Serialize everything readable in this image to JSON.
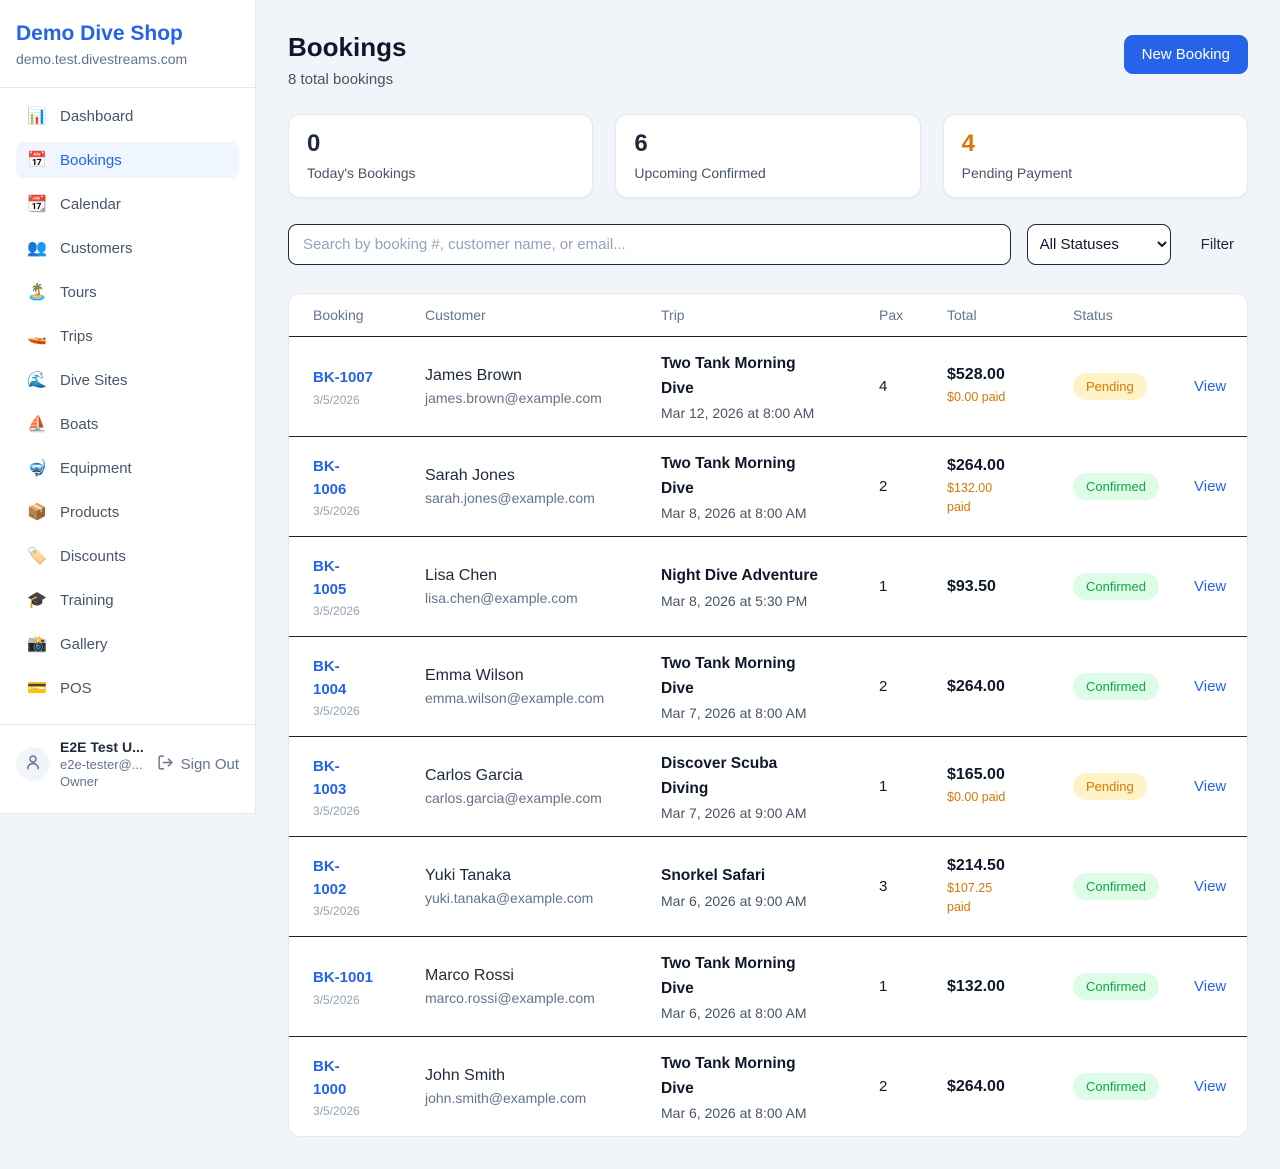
{
  "colors": {
    "brand": "#2563eb",
    "page_bg": "#f1f5f9",
    "pending_bg": "#fef3c7",
    "pending_text": "#d97706",
    "confirmed_bg": "#dcfce7",
    "confirmed_text": "#16a34a",
    "paid_orange": "#d97706"
  },
  "sidebar": {
    "shop_name": "Demo Dive Shop",
    "domain": "demo.test.divestreams.com",
    "items": [
      {
        "icon": "📊",
        "icon_name": "bar-chart-icon",
        "label": "Dashboard",
        "active": false
      },
      {
        "icon": "📅",
        "icon_name": "calendar-date-icon",
        "label": "Bookings",
        "active": true
      },
      {
        "icon": "📆",
        "icon_name": "tear-off-calendar-icon",
        "label": "Calendar",
        "active": false
      },
      {
        "icon": "👥",
        "icon_name": "people-icon",
        "label": "Customers",
        "active": false
      },
      {
        "icon": "🏝️",
        "icon_name": "island-icon",
        "label": "Tours",
        "active": false
      },
      {
        "icon": "🚤",
        "icon_name": "speedboat-icon",
        "label": "Trips",
        "active": false
      },
      {
        "icon": "🌊",
        "icon_name": "wave-icon",
        "label": "Dive Sites",
        "active": false
      },
      {
        "icon": "⛵",
        "icon_name": "sailboat-icon",
        "label": "Boats",
        "active": false
      },
      {
        "icon": "🤿",
        "icon_name": "diving-mask-icon",
        "label": "Equipment",
        "active": false
      },
      {
        "icon": "📦",
        "icon_name": "package-icon",
        "label": "Products",
        "active": false
      },
      {
        "icon": "🏷️",
        "icon_name": "tag-icon",
        "label": "Discounts",
        "active": false
      },
      {
        "icon": "🎓",
        "icon_name": "graduation-cap-icon",
        "label": "Training",
        "active": false
      },
      {
        "icon": "📸",
        "icon_name": "camera-flash-icon",
        "label": "Gallery",
        "active": false
      },
      {
        "icon": "💳",
        "icon_name": "credit-card-icon",
        "label": "POS",
        "active": false
      }
    ],
    "user": {
      "name": "E2E Test U...",
      "email": "e2e-tester@...",
      "role": "Owner",
      "sign_out_label": "Sign Out"
    }
  },
  "header": {
    "title": "Bookings",
    "subtitle": "8 total bookings",
    "new_booking_label": "New Booking"
  },
  "stats": [
    {
      "value": "0",
      "label": "Today's Bookings",
      "accent": "dark"
    },
    {
      "value": "6",
      "label": "Upcoming Confirmed",
      "accent": "dark"
    },
    {
      "value": "4",
      "label": "Pending Payment",
      "accent": "orange"
    }
  ],
  "filters": {
    "search_placeholder": "Search by booking #, customer name, or email...",
    "status_selected": "All Statuses",
    "filter_label": "Filter"
  },
  "table": {
    "columns": [
      "Booking",
      "Customer",
      "Trip",
      "Pax",
      "Total",
      "Status"
    ],
    "view_label": "View",
    "rows": [
      {
        "id": "BK-1007",
        "wrap_id": false,
        "date": "3/5/2026",
        "customer": "James Brown",
        "email": "james.brown@example.com",
        "trip": "Two Tank Morning Dive",
        "trip_date": "Mar 12, 2026 at 8:00 AM",
        "pax": "4",
        "total": "$528.00",
        "paid": "$0.00 paid",
        "wrap_paid": false,
        "status": "Pending"
      },
      {
        "id": "BK-1006",
        "wrap_id": true,
        "date": "3/5/2026",
        "customer": "Sarah Jones",
        "email": "sarah.jones@example.com",
        "trip": "Two Tank Morning Dive",
        "trip_date": "Mar 8, 2026 at 8:00 AM",
        "pax": "2",
        "total": "$264.00",
        "paid": "$132.00 paid",
        "wrap_paid": true,
        "status": "Confirmed"
      },
      {
        "id": "BK-1005",
        "wrap_id": true,
        "date": "3/5/2026",
        "customer": "Lisa Chen",
        "email": "lisa.chen@example.com",
        "trip": "Night Dive Adventure",
        "trip_date": "Mar 8, 2026 at 5:30 PM",
        "pax": "1",
        "total": "$93.50",
        "paid": "",
        "wrap_paid": false,
        "status": "Confirmed"
      },
      {
        "id": "BK-1004",
        "wrap_id": true,
        "date": "3/5/2026",
        "customer": "Emma Wilson",
        "email": "emma.wilson@example.com",
        "trip": "Two Tank Morning Dive",
        "trip_date": "Mar 7, 2026 at 8:00 AM",
        "pax": "2",
        "total": "$264.00",
        "paid": "",
        "wrap_paid": false,
        "status": "Confirmed"
      },
      {
        "id": "BK-1003",
        "wrap_id": true,
        "date": "3/5/2026",
        "customer": "Carlos Garcia",
        "email": "carlos.garcia@example.com",
        "trip": "Discover Scuba Diving",
        "trip_date": "Mar 7, 2026 at 9:00 AM",
        "pax": "1",
        "total": "$165.00",
        "paid": "$0.00 paid",
        "wrap_paid": false,
        "status": "Pending"
      },
      {
        "id": "BK-1002",
        "wrap_id": true,
        "date": "3/5/2026",
        "customer": "Yuki Tanaka",
        "email": "yuki.tanaka@example.com",
        "trip": "Snorkel Safari",
        "trip_date": "Mar 6, 2026 at 9:00 AM",
        "pax": "3",
        "total": "$214.50",
        "paid": "$107.25 paid",
        "wrap_paid": false,
        "status": "Confirmed"
      },
      {
        "id": "BK-1001",
        "wrap_id": false,
        "date": "3/5/2026",
        "customer": "Marco Rossi",
        "email": "marco.rossi@example.com",
        "trip": "Two Tank Morning Dive",
        "trip_date": "Mar 6, 2026 at 8:00 AM",
        "pax": "1",
        "total": "$132.00",
        "paid": "",
        "wrap_paid": false,
        "status": "Confirmed"
      },
      {
        "id": "BK-1000",
        "wrap_id": true,
        "date": "3/5/2026",
        "customer": "John Smith",
        "email": "john.smith@example.com",
        "trip": "Two Tank Morning Dive",
        "trip_date": "Mar 6, 2026 at 8:00 AM",
        "pax": "2",
        "total": "$264.00",
        "paid": "",
        "wrap_paid": false,
        "status": "Confirmed"
      }
    ]
  }
}
